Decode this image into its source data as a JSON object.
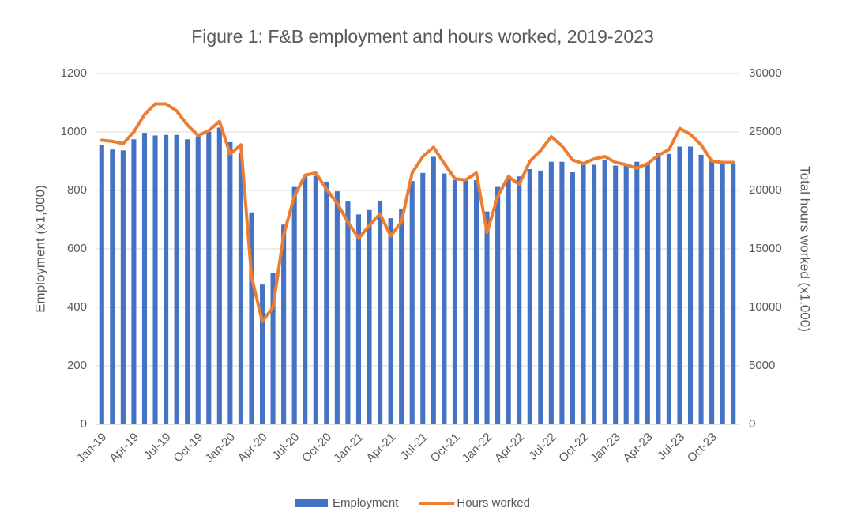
{
  "chart_data": {
    "type": "bar_line",
    "title": "Figure 1: F&B employment and hours worked, 2019-2023",
    "y_label": "Employment (x1,000)",
    "y2_label": "Total hours worked (x1,000)",
    "categories": [
      "Jan-19",
      null,
      null,
      "Apr-19",
      null,
      null,
      "Jul-19",
      null,
      null,
      "Oct-19",
      null,
      null,
      "Jan-20",
      null,
      null,
      "Apr-20",
      null,
      null,
      "Jul-20",
      null,
      null,
      "Oct-20",
      null,
      null,
      "Jan-21",
      null,
      null,
      "Apr-21",
      null,
      null,
      "Jul-21",
      null,
      null,
      "Oct-21",
      null,
      null,
      "Jan-22",
      null,
      null,
      "Apr-22",
      null,
      null,
      "Jul-22",
      null,
      null,
      "Oct-22",
      null,
      null,
      "Jan-23",
      null,
      null,
      "Apr-23",
      null,
      null,
      "Jul-23",
      null,
      null,
      "Oct-23",
      null,
      null
    ],
    "series": [
      {
        "name": "Employment",
        "type": "bar",
        "color": "#4472c4",
        "axis": "y",
        "values": [
          955,
          940,
          937,
          975,
          997,
          988,
          990,
          990,
          975,
          985,
          1000,
          1015,
          965,
          930,
          725,
          478,
          518,
          683,
          812,
          848,
          850,
          830,
          797,
          762,
          718,
          733,
          765,
          705,
          738,
          832,
          860,
          915,
          858,
          835,
          838,
          835,
          728,
          812,
          840,
          848,
          873,
          868,
          898,
          898,
          862,
          890,
          888,
          903,
          885,
          888,
          898,
          890,
          930,
          925,
          950,
          950,
          922,
          900,
          895,
          890
        ]
      },
      {
        "name": "Hours worked",
        "type": "line",
        "color": "#ed7d31",
        "axis": "y2",
        "values": [
          24300,
          24200,
          24000,
          25000,
          26500,
          27400,
          27400,
          26800,
          25600,
          24700,
          25100,
          25900,
          23100,
          23900,
          12600,
          8800,
          10000,
          16200,
          19500,
          21300,
          21500,
          20100,
          18900,
          17300,
          15900,
          17000,
          18000,
          16100,
          17300,
          21500,
          22900,
          23700,
          22300,
          21000,
          20900,
          21500,
          16400,
          19500,
          21200,
          20500,
          22500,
          23400,
          24600,
          23800,
          22600,
          22300,
          22700,
          22900,
          22400,
          22200,
          21900,
          22300,
          23000,
          23500,
          25300,
          24800,
          23900,
          22500,
          22400,
          22400
        ]
      }
    ],
    "ylim": [
      0,
      1200
    ],
    "yticks": [
      0,
      200,
      400,
      600,
      800,
      1000,
      1200
    ],
    "y2lim": [
      0,
      30000
    ],
    "y2ticks": [
      0,
      5000,
      10000,
      15000,
      20000,
      25000,
      30000
    ],
    "grid": true,
    "legend": "bottom"
  }
}
